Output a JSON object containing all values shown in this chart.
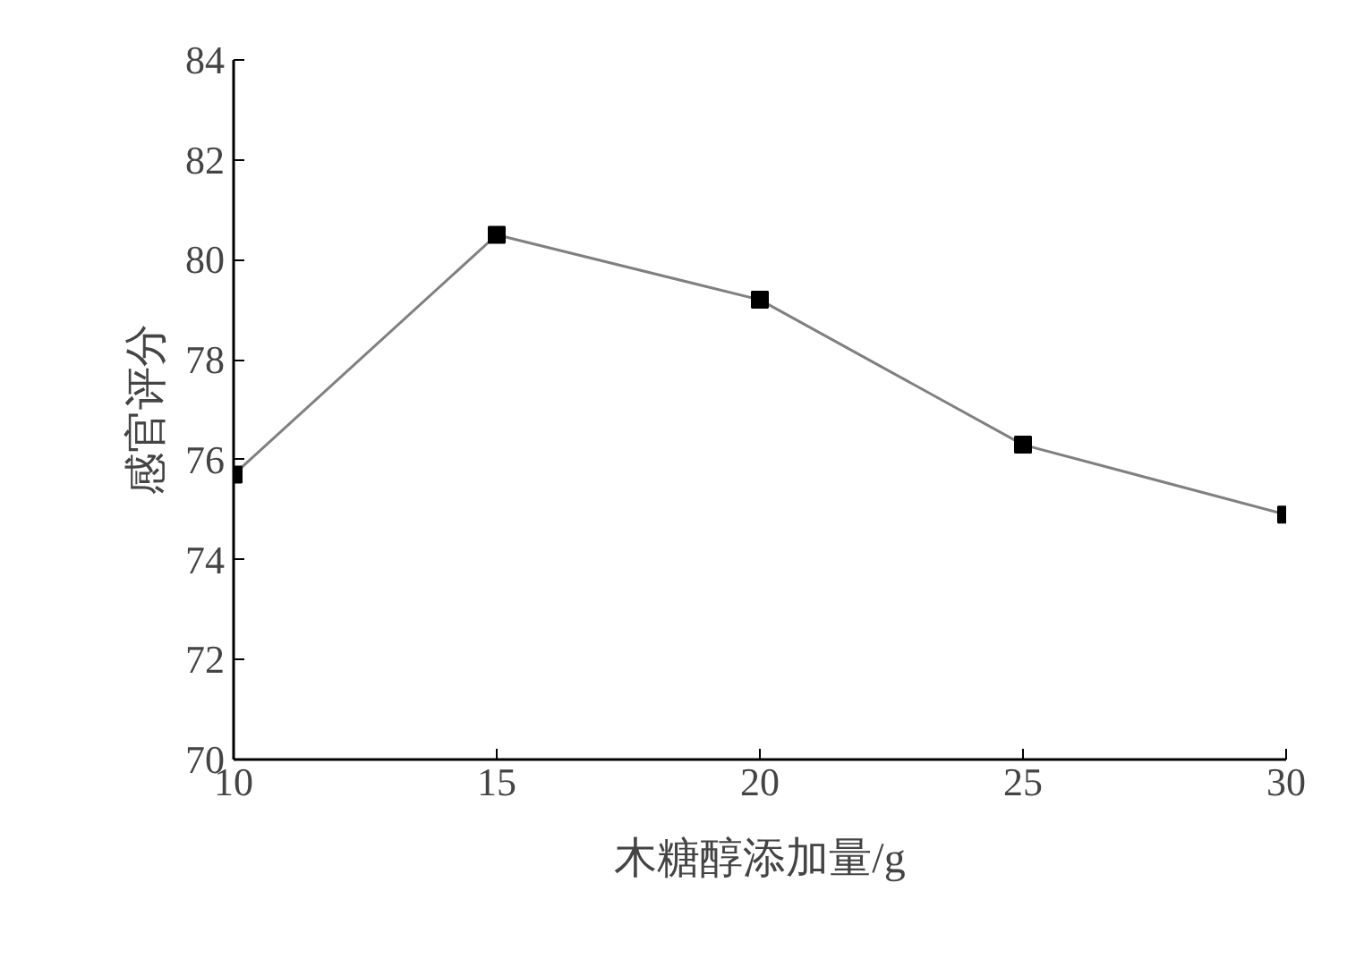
{
  "chart_data": {
    "type": "line",
    "xlabel": "木糖醇添加量/g",
    "ylabel": "感官评分",
    "x": [
      10,
      15,
      20,
      25,
      30
    ],
    "series": [
      {
        "color": "#000000",
        "values": [
          75.7,
          80.5,
          79.2,
          76.3,
          74.9
        ]
      }
    ],
    "xlim": [
      10,
      30
    ],
    "xticks": [
      10,
      15,
      20,
      25,
      30
    ],
    "ylim": [
      70,
      84
    ],
    "yticks": [
      70,
      72,
      74,
      76,
      78,
      80,
      82,
      84
    ],
    "grid": false,
    "marker": "square",
    "line_style": "solid"
  }
}
